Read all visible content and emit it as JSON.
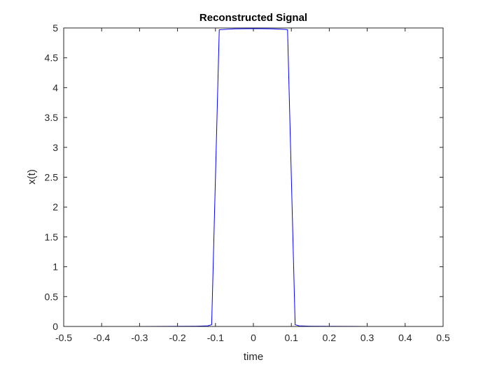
{
  "chart_data": {
    "type": "line",
    "title": "Reconstructed Signal",
    "xlabel": "time",
    "ylabel": "x(t)",
    "xlim": [
      -0.5,
      0.5
    ],
    "ylim": [
      0,
      5
    ],
    "xticks": [
      -0.5,
      -0.4,
      -0.3,
      -0.2,
      -0.1,
      0,
      0.1,
      0.2,
      0.3,
      0.4,
      0.5
    ],
    "xtick_labels": [
      "-0.5",
      "-0.4",
      "-0.3",
      "-0.2",
      "-0.1",
      "0",
      "0.1",
      "0.2",
      "0.3",
      "0.4",
      "0.5"
    ],
    "yticks": [
      0,
      0.5,
      1,
      1.5,
      2,
      2.5,
      3,
      3.5,
      4,
      4.5,
      5
    ],
    "ytick_labels": [
      "0",
      "0.5",
      "1",
      "1.5",
      "2",
      "2.5",
      "3",
      "3.5",
      "4",
      "4.5",
      "5"
    ],
    "grid": false,
    "series": [
      {
        "color": "#0000ff",
        "x": [
          -0.5,
          -0.3,
          -0.2,
          -0.15,
          -0.12,
          -0.11,
          -0.1,
          -0.09,
          -0.05,
          0,
          0.05,
          0.085,
          0.09,
          0.1,
          0.11,
          0.12,
          0.15,
          0.2,
          0.3,
          0.5
        ],
        "y": [
          0,
          0,
          0.003,
          0.005,
          0.01,
          0.03,
          2.5,
          4.97,
          4.985,
          4.99,
          4.985,
          4.975,
          4.97,
          2.5,
          0.03,
          0.01,
          0.005,
          0.003,
          0,
          0
        ]
      }
    ]
  }
}
